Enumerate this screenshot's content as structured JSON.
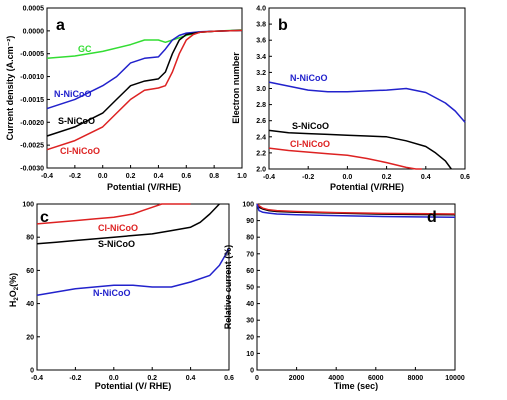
{
  "chart_data": [
    {
      "panel": "a",
      "type": "line",
      "xlabel": "Potential (V/RHE)",
      "ylabel": "Current density (A.cm⁻²)",
      "xlim": [
        -0.4,
        1.0
      ],
      "ylim": [
        -0.003,
        0.0005
      ],
      "xticks": [
        "-0.4",
        "-0.2",
        "0.0",
        "0.2",
        "0.4",
        "0.6",
        "0.8",
        "1.0"
      ],
      "yticks": [
        "0.0005",
        "0.0000",
        "-0.0005",
        "-0.0010",
        "-0.0015",
        "-0.0020",
        "-0.0025",
        "-0.0030"
      ],
      "xtick_values": [
        -0.4,
        -0.2,
        0.0,
        0.2,
        0.4,
        0.6,
        0.8,
        1.0
      ],
      "ytick_values": [
        0.0005,
        0.0,
        -0.0005,
        -0.001,
        -0.0015,
        -0.002,
        -0.0025,
        -0.003
      ],
      "series": [
        {
          "name": "GC",
          "color": "#33dd33",
          "x": [
            -0.4,
            -0.2,
            0.0,
            0.2,
            0.3,
            0.4,
            0.45,
            0.5,
            0.6,
            0.7,
            0.8,
            1.0
          ],
          "y": [
            -0.0006,
            -0.00055,
            -0.00045,
            -0.0003,
            -0.0002,
            -0.0002,
            -0.00025,
            -0.0002,
            -0.0001,
            -3e-05,
            -1e-05,
            2e-05
          ]
        },
        {
          "name": "N-NiCoO",
          "color": "#2222cc",
          "x": [
            -0.4,
            -0.2,
            0.0,
            0.1,
            0.2,
            0.3,
            0.4,
            0.45,
            0.5,
            0.55,
            0.6,
            0.7,
            0.8,
            1.0
          ],
          "y": [
            -0.0017,
            -0.0015,
            -0.0012,
            -0.001,
            -0.0007,
            -0.0006,
            -0.00057,
            -0.0004,
            -0.0002,
            -0.0001,
            -5e-05,
            -2e-05,
            -1e-05,
            1e-05
          ]
        },
        {
          "name": "S-NiCoO",
          "color": "#000000",
          "x": [
            -0.4,
            -0.2,
            0.0,
            0.1,
            0.2,
            0.3,
            0.4,
            0.45,
            0.5,
            0.55,
            0.6,
            0.7,
            0.8,
            1.0
          ],
          "y": [
            -0.0023,
            -0.0021,
            -0.0018,
            -0.0015,
            -0.0012,
            -0.0011,
            -0.00105,
            -0.0009,
            -0.0005,
            -0.0002,
            -8e-05,
            -3e-05,
            -1e-05,
            1e-05
          ]
        },
        {
          "name": "Cl-NiCoO",
          "color": "#dd2222",
          "x": [
            -0.4,
            -0.2,
            0.0,
            0.1,
            0.2,
            0.3,
            0.4,
            0.45,
            0.5,
            0.55,
            0.6,
            0.65,
            0.7,
            0.8,
            1.0
          ],
          "y": [
            -0.0026,
            -0.0024,
            -0.0021,
            -0.0018,
            -0.0015,
            -0.0013,
            -0.00125,
            -0.0012,
            -0.0009,
            -0.0005,
            -0.0002,
            -8e-05,
            -3e-05,
            -1e-05,
            1e-05
          ]
        }
      ]
    },
    {
      "panel": "b",
      "type": "line",
      "xlabel": "Potential (V/RHE)",
      "ylabel": "Electron number",
      "xlim": [
        -0.4,
        0.6
      ],
      "ylim": [
        2.0,
        4.0
      ],
      "xticks": [
        "-0.4",
        "-0.2",
        "0.0",
        "0.2",
        "0.4",
        "0.6"
      ],
      "yticks": [
        "4.0",
        "3.8",
        "3.6",
        "3.4",
        "3.2",
        "3.0",
        "2.8",
        "2.6",
        "2.4",
        "2.2",
        "2.0"
      ],
      "xtick_values": [
        -0.4,
        -0.2,
        0.0,
        0.2,
        0.4,
        0.6
      ],
      "ytick_values": [
        4.0,
        3.8,
        3.6,
        3.4,
        3.2,
        3.0,
        2.8,
        2.6,
        2.4,
        2.2,
        2.0
      ],
      "series": [
        {
          "name": "N-NiCoO",
          "color": "#2222cc",
          "x": [
            -0.4,
            -0.3,
            -0.2,
            -0.1,
            0.0,
            0.1,
            0.2,
            0.3,
            0.4,
            0.5,
            0.55,
            0.6
          ],
          "y": [
            3.08,
            3.03,
            2.98,
            2.96,
            2.96,
            2.97,
            2.98,
            3.0,
            2.95,
            2.82,
            2.72,
            2.58
          ]
        },
        {
          "name": "S-NiCoO",
          "color": "#000000",
          "x": [
            -0.4,
            -0.3,
            -0.2,
            -0.1,
            0.0,
            0.1,
            0.2,
            0.3,
            0.4,
            0.45,
            0.5,
            0.53
          ],
          "y": [
            2.48,
            2.45,
            2.44,
            2.43,
            2.42,
            2.41,
            2.4,
            2.35,
            2.28,
            2.2,
            2.1,
            2.0
          ]
        },
        {
          "name": "Cl-NiCoO",
          "color": "#dd2222",
          "x": [
            -0.4,
            -0.3,
            -0.2,
            -0.1,
            0.0,
            0.1,
            0.2,
            0.3,
            0.35,
            0.38
          ],
          "y": [
            2.26,
            2.23,
            2.21,
            2.19,
            2.17,
            2.13,
            2.08,
            2.02,
            1.99,
            1.97
          ]
        }
      ]
    },
    {
      "panel": "c",
      "type": "line",
      "xlabel": "Potential (V/ RHE)",
      "ylabel": "H2O2(%)",
      "xlim": [
        -0.4,
        0.6
      ],
      "ylim": [
        0,
        100
      ],
      "xticks": [
        "-0.4",
        "-0.2",
        "0.0",
        "0.2",
        "0.4",
        "0.6"
      ],
      "yticks": [
        "100",
        "80",
        "60",
        "40",
        "20",
        "0"
      ],
      "xtick_values": [
        -0.4,
        -0.2,
        0.0,
        0.2,
        0.4,
        0.6
      ],
      "ytick_values": [
        100,
        80,
        60,
        40,
        20,
        0
      ],
      "series": [
        {
          "name": "Cl-NiCoO",
          "color": "#dd2222",
          "x": [
            -0.4,
            -0.3,
            -0.2,
            -0.1,
            0.0,
            0.1,
            0.15,
            0.2,
            0.25,
            0.3,
            0.4
          ],
          "y": [
            88,
            89,
            90,
            91,
            92,
            94,
            96,
            98,
            100,
            100,
            100
          ]
        },
        {
          "name": "S-NiCoO",
          "color": "#000000",
          "x": [
            -0.4,
            -0.3,
            -0.2,
            -0.1,
            0.0,
            0.1,
            0.2,
            0.3,
            0.4,
            0.45,
            0.5,
            0.55
          ],
          "y": [
            76,
            77,
            78,
            79,
            80,
            81,
            82,
            84,
            86,
            89,
            94,
            100
          ]
        },
        {
          "name": "N-NiCoO",
          "color": "#2222cc",
          "x": [
            -0.4,
            -0.3,
            -0.2,
            -0.1,
            0.0,
            0.1,
            0.2,
            0.3,
            0.4,
            0.5,
            0.55,
            0.6
          ],
          "y": [
            45,
            47,
            49,
            50,
            51,
            51,
            50,
            50,
            53,
            57,
            63,
            73
          ]
        }
      ]
    },
    {
      "panel": "d",
      "type": "line",
      "xlabel": "Time (sec)",
      "ylabel": "Relative current (%)",
      "xlim": [
        0,
        10000
      ],
      "ylim": [
        0,
        100
      ],
      "xticks": [
        "0",
        "2000",
        "4000",
        "6000",
        "8000",
        "10000"
      ],
      "yticks": [
        "100",
        "90",
        "80",
        "70",
        "60",
        "50",
        "40",
        "30",
        "20",
        "10",
        "0"
      ],
      "xtick_values": [
        0,
        2000,
        4000,
        6000,
        8000,
        10000
      ],
      "ytick_values": [
        100,
        90,
        80,
        70,
        60,
        50,
        40,
        30,
        20,
        10,
        0
      ],
      "series": [
        {
          "name": "S-NiCoO",
          "color": "#000000",
          "x": [
            0,
            100,
            300,
            600,
            1000,
            2000,
            4000,
            6000,
            8000,
            10000
          ],
          "y": [
            100,
            98,
            97,
            96,
            95.5,
            95,
            94.5,
            94,
            93.7,
            93.5
          ]
        },
        {
          "name": "Cl-NiCoO",
          "color": "#dd2222",
          "x": [
            0,
            100,
            300,
            600,
            1000,
            2000,
            4000,
            6000,
            8000,
            10000
          ],
          "y": [
            100,
            99,
            97.5,
            96.5,
            96,
            95.5,
            94.8,
            94.4,
            94.2,
            94
          ]
        },
        {
          "name": "N-NiCoO",
          "color": "#2222cc",
          "x": [
            0,
            100,
            300,
            600,
            1000,
            2000,
            4000,
            6000,
            8000,
            10000
          ],
          "y": [
            100,
            96,
            95,
            94.5,
            94,
            93.5,
            93,
            92.5,
            92.2,
            92
          ]
        }
      ]
    }
  ],
  "panels": {
    "a": {
      "letter": "a",
      "labels": {
        "gc": "GC",
        "n": "N-NiCoO",
        "s": "S-NiCoO",
        "cl": "Cl-NiCoO"
      }
    },
    "b": {
      "letter": "b",
      "labels": {
        "n": "N-NiCoO",
        "s": "S-NiCoO",
        "cl": "Cl-NiCoO"
      }
    },
    "c": {
      "letter": "c",
      "labels": {
        "cl": "Cl-NiCoO",
        "s": "S-NiCoO",
        "n": "N-NiCoO"
      }
    },
    "d": {
      "letter": "d"
    }
  }
}
